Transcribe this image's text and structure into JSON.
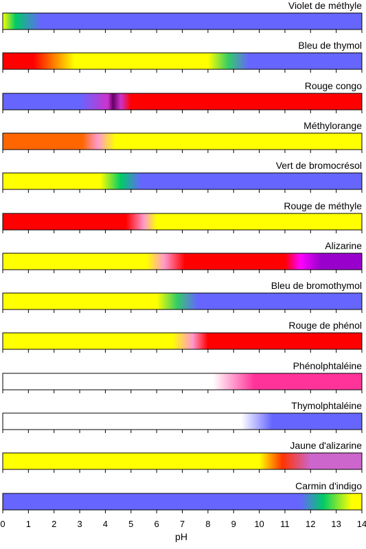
{
  "chart_data": {
    "type": "bar",
    "xlabel": "pH",
    "xlim": [
      0,
      14
    ],
    "x_ticks": [
      "0",
      "1",
      "2",
      "3",
      "4",
      "5",
      "6",
      "7",
      "8",
      "9",
      "10",
      "11",
      "12",
      "13",
      "14"
    ],
    "indicators": [
      {
        "name": "Violet de méthyle",
        "stops": [
          [
            0.0,
            "#ffff00"
          ],
          [
            0.5,
            "#00cc66"
          ],
          [
            1.5,
            "#6666ff"
          ],
          [
            14.0,
            "#6666ff"
          ]
        ]
      },
      {
        "name": "Bleu de thymol",
        "stops": [
          [
            0.0,
            "#ff0000"
          ],
          [
            1.2,
            "#ff0000"
          ],
          [
            2.8,
            "#ffff00"
          ],
          [
            8.0,
            "#ffff00"
          ],
          [
            8.8,
            "#33cc66"
          ],
          [
            9.6,
            "#6666ff"
          ],
          [
            14.0,
            "#6666ff"
          ]
        ]
      },
      {
        "name": "Rouge congo",
        "stops": [
          [
            0.0,
            "#6666ff"
          ],
          [
            3.0,
            "#6666ff"
          ],
          [
            4.1,
            "#cc33cc"
          ],
          [
            4.3,
            "#660066"
          ],
          [
            4.6,
            "#cc33cc"
          ],
          [
            5.0,
            "#ff0000"
          ],
          [
            14.0,
            "#ff0000"
          ]
        ]
      },
      {
        "name": "Méthylorange",
        "stops": [
          [
            0.0,
            "#ff6600"
          ],
          [
            3.1,
            "#ff6600"
          ],
          [
            3.7,
            "#ff99cc"
          ],
          [
            4.4,
            "#ffff00"
          ],
          [
            14.0,
            "#ffff00"
          ]
        ]
      },
      {
        "name": "Vert de bromocrésol",
        "stops": [
          [
            0.0,
            "#ffff00"
          ],
          [
            3.8,
            "#ffff00"
          ],
          [
            4.6,
            "#00cc66"
          ],
          [
            5.4,
            "#6666ff"
          ],
          [
            14.0,
            "#6666ff"
          ]
        ]
      },
      {
        "name": "Rouge de méthyle",
        "stops": [
          [
            0.0,
            "#ff0000"
          ],
          [
            4.8,
            "#ff0000"
          ],
          [
            5.5,
            "#ff99cc"
          ],
          [
            6.0,
            "#ffff00"
          ],
          [
            14.0,
            "#ffff00"
          ]
        ]
      },
      {
        "name": "Alizarine",
        "stops": [
          [
            0.0,
            "#ffff00"
          ],
          [
            5.6,
            "#ffff00"
          ],
          [
            6.3,
            "#ff99cc"
          ],
          [
            7.1,
            "#ff0000"
          ],
          [
            11.0,
            "#ff0000"
          ],
          [
            11.6,
            "#ff00ff"
          ],
          [
            12.4,
            "#9900cc"
          ],
          [
            14.0,
            "#9900cc"
          ]
        ]
      },
      {
        "name": "Bleu de bromothymol",
        "stops": [
          [
            0.0,
            "#ffff00"
          ],
          [
            6.0,
            "#ffff00"
          ],
          [
            6.8,
            "#33cc66"
          ],
          [
            7.6,
            "#6666ff"
          ],
          [
            14.0,
            "#6666ff"
          ]
        ]
      },
      {
        "name": "Rouge de phénol",
        "stops": [
          [
            0.0,
            "#ffff00"
          ],
          [
            6.6,
            "#ffff00"
          ],
          [
            7.4,
            "#ff99cc"
          ],
          [
            8.0,
            "#ff0000"
          ],
          [
            14.0,
            "#ff0000"
          ]
        ]
      },
      {
        "name": "Phénolphtaléine",
        "stops": [
          [
            0.0,
            "#ffffff"
          ],
          [
            8.2,
            "#ffffff"
          ],
          [
            9.8,
            "#ff3399"
          ],
          [
            14.0,
            "#ff3399"
          ]
        ]
      },
      {
        "name": "Thymolphtaléine",
        "stops": [
          [
            0.0,
            "#ffffff"
          ],
          [
            9.3,
            "#ffffff"
          ],
          [
            10.5,
            "#6666ff"
          ],
          [
            14.0,
            "#6666ff"
          ]
        ]
      },
      {
        "name": "Jaune d'alizarine",
        "stops": [
          [
            0.0,
            "#ffff00"
          ],
          [
            10.0,
            "#ffff00"
          ],
          [
            10.9,
            "#ff3300"
          ],
          [
            12.0,
            "#cc66cc"
          ],
          [
            14.0,
            "#cc66cc"
          ]
        ]
      },
      {
        "name": "Carmin d'indigo",
        "stops": [
          [
            0.0,
            "#6666ff"
          ],
          [
            11.6,
            "#6666ff"
          ],
          [
            12.5,
            "#00cc66"
          ],
          [
            13.6,
            "#ffff00"
          ],
          [
            14.0,
            "#ffff00"
          ]
        ]
      }
    ]
  }
}
